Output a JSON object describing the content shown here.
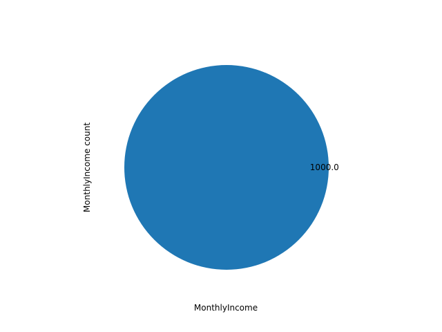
{
  "chart_data": {
    "type": "pie",
    "categories": [
      "1000.0"
    ],
    "values": [
      1
    ],
    "slice_labels": [
      "1000.0"
    ],
    "xlabel": "MonthlyIncome",
    "ylabel": "MonthlyIncome count",
    "colors": [
      "#1f77b4"
    ],
    "legend": "none",
    "grid": false
  }
}
